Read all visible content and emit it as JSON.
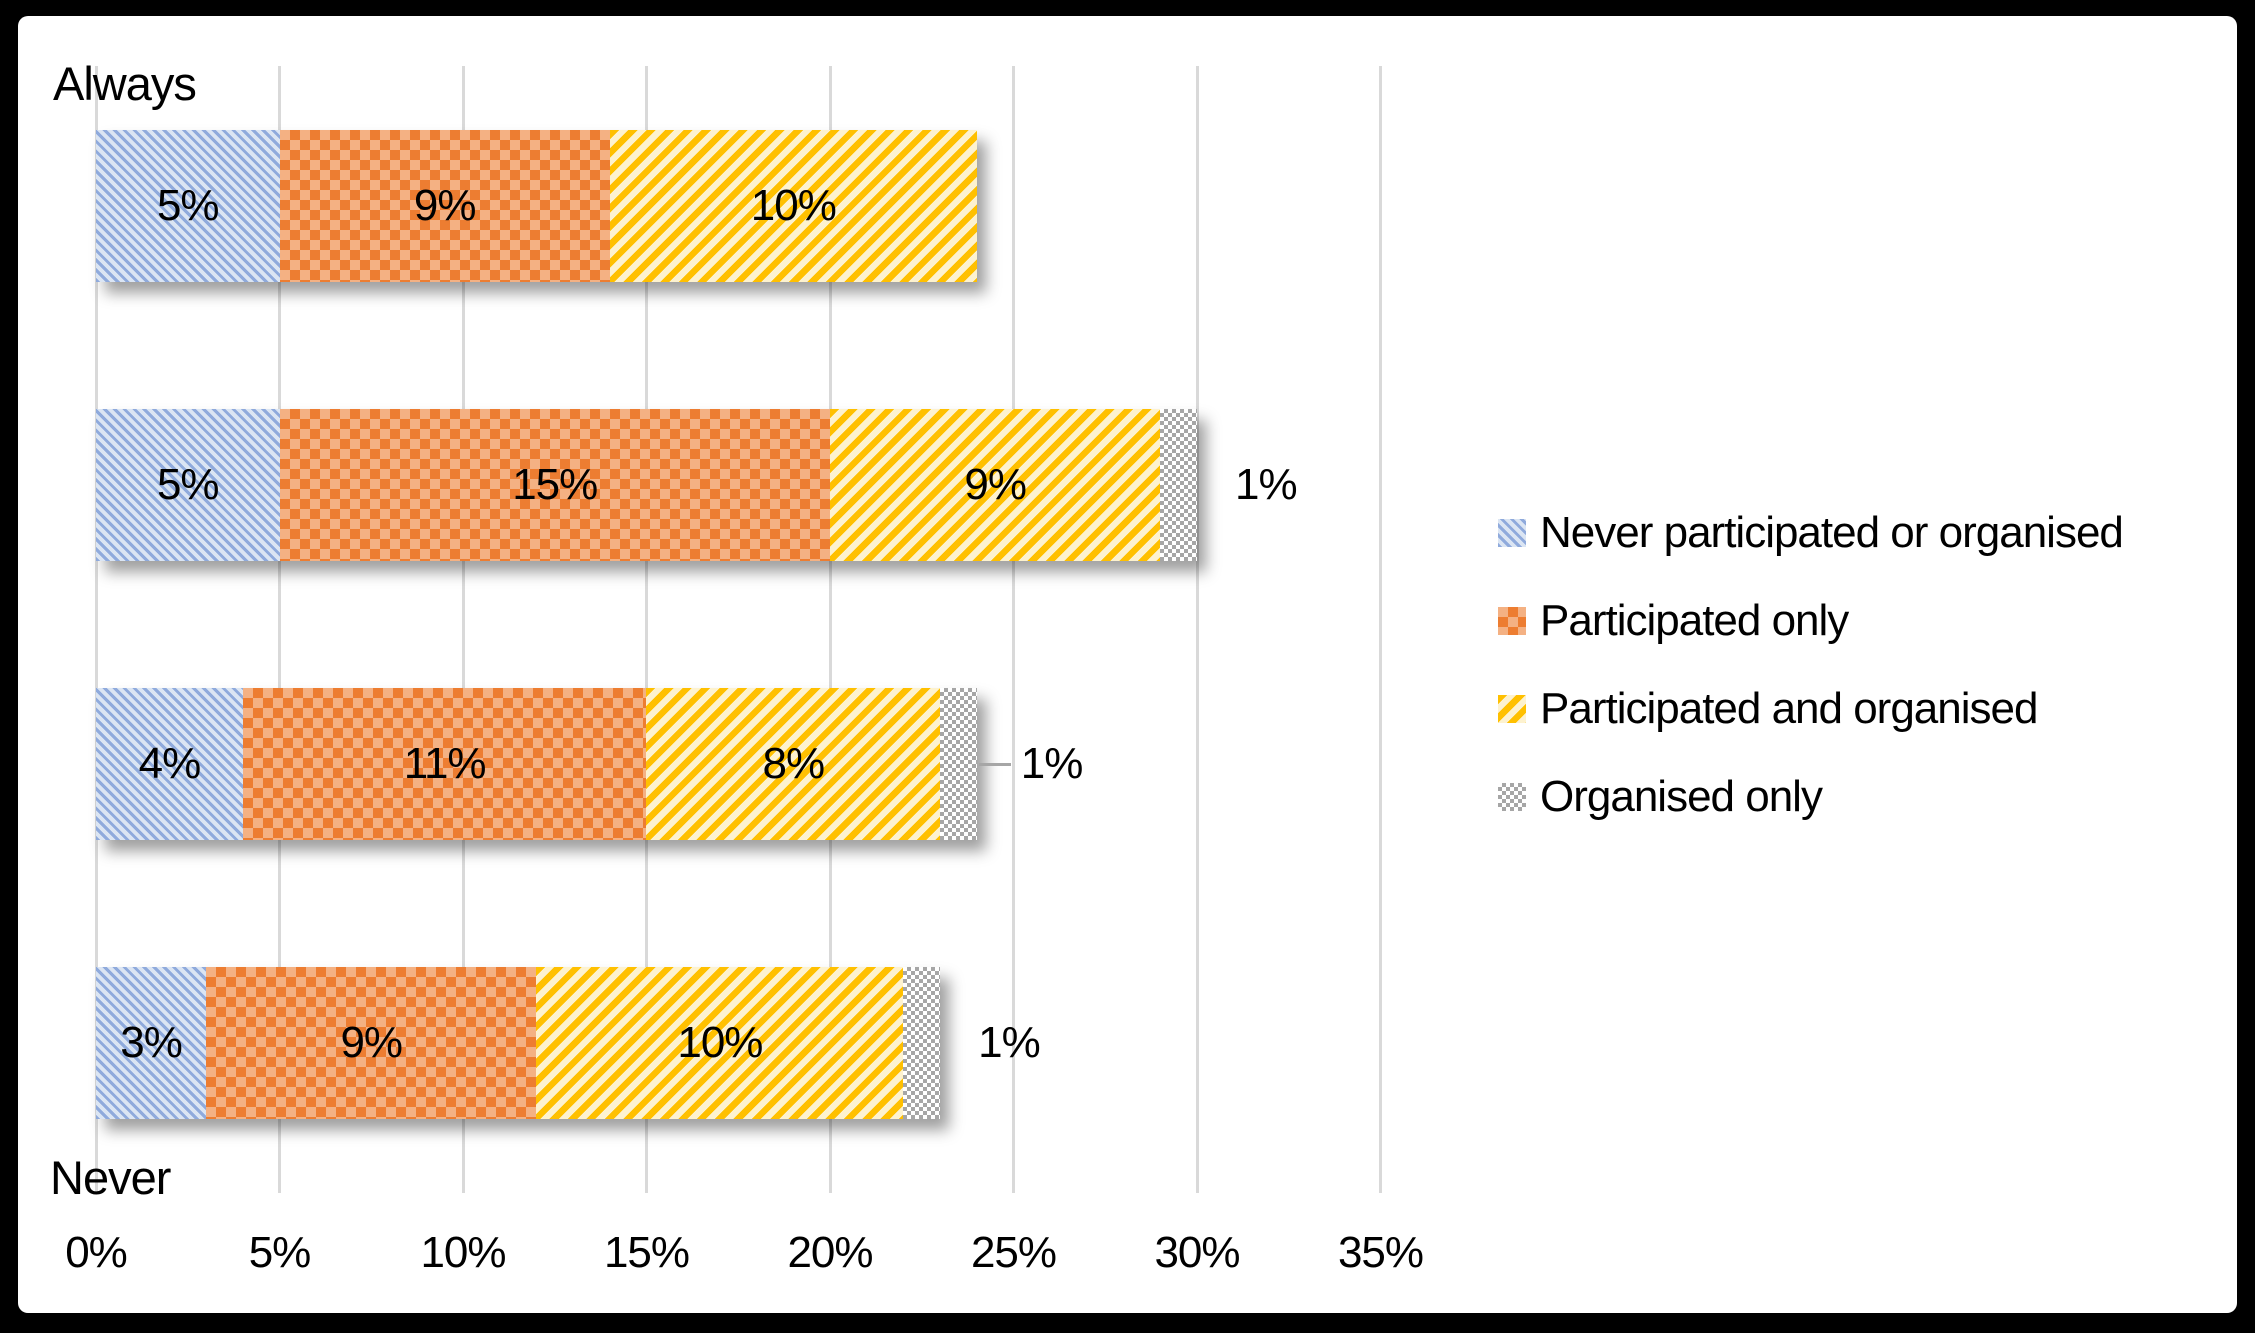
{
  "frame": {
    "border_color": "#000000",
    "background": "#ffffff"
  },
  "chart_data": {
    "type": "bar",
    "orientation": "horizontal",
    "stacked": true,
    "title": "",
    "categories": [
      "Always",
      "",
      "",
      "Never"
    ],
    "series": [
      {
        "name": "Never participated or organised",
        "pattern": "diagonal-down-stripes",
        "bg": "#dbe5f3",
        "fg": "#8faadc",
        "values": [
          5,
          5,
          4,
          3
        ]
      },
      {
        "name": "Participated only",
        "pattern": "checker",
        "bg": "#f4b183",
        "fg": "#ed7d31",
        "values": [
          9,
          15,
          11,
          9
        ]
      },
      {
        "name": "Participated and organised",
        "pattern": "diagonal-up-stripes",
        "bg": "#fdf2cf",
        "fg": "#ffc000",
        "values": [
          10,
          9,
          8,
          10
        ]
      },
      {
        "name": "Organised only",
        "pattern": "checker-fine",
        "bg": "#ffffff",
        "fg": "#a6a6a6",
        "values": [
          0,
          1,
          1,
          1
        ]
      }
    ],
    "data_labels": [
      [
        "5%",
        "9%",
        "10%",
        ""
      ],
      [
        "5%",
        "15%",
        "9%",
        ""
      ],
      [
        "4%",
        "11%",
        "8%",
        ""
      ],
      [
        "3%",
        "9%",
        "10%",
        ""
      ]
    ],
    "outside_labels": [
      {
        "row": 1,
        "text": "1%",
        "leader_line": false
      },
      {
        "row": 2,
        "text": "1%",
        "leader_line": true
      },
      {
        "row": 3,
        "text": "1%",
        "leader_line": false
      }
    ],
    "x_axis": {
      "ticks": [
        "0%",
        "5%",
        "10%",
        "15%",
        "20%",
        "25%",
        "30%",
        "35%"
      ],
      "tick_values": [
        0,
        5,
        10,
        15,
        20,
        25,
        30,
        35
      ],
      "min": 0,
      "max": 35,
      "grid": true,
      "gridline_color": "#d9d9d9"
    },
    "y_axis": {
      "top_label": "Always",
      "bottom_label": "Never"
    },
    "legend": {
      "position": "right"
    },
    "text_color": "#000000",
    "leader_line_color": "#a6a6a6"
  }
}
